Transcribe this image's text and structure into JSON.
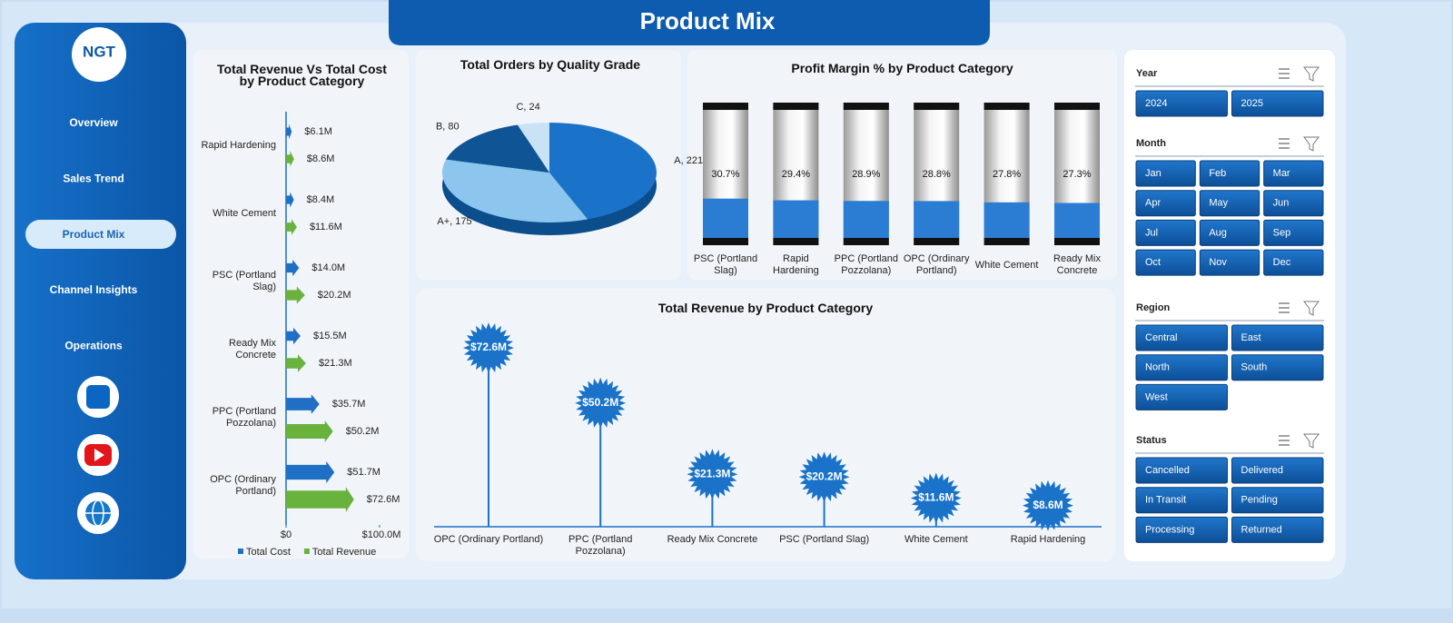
{
  "title": "Product Mix",
  "logo": "NGT",
  "nav": [
    "Overview",
    "Sales Trend",
    "Product Mix",
    "Channel Insights",
    "Operations"
  ],
  "chart_data": [
    {
      "type": "hbar",
      "title": "Total Revenue Vs Total Cost by Product Category",
      "categories": [
        "Rapid Hardening",
        "White Cement",
        "PSC (Portland Slag)",
        "Ready Mix Concrete",
        "PPC (Portland Pozzolana)",
        "OPC (Ordinary Portland)"
      ],
      "series": [
        {
          "name": "Total Cost",
          "color": "#1f6fc5",
          "values": [
            6.1,
            8.4,
            14.0,
            15.5,
            35.7,
            51.7
          ],
          "value_labels": [
            "$6.1M",
            "$8.4M",
            "$14.0M",
            "$15.5M",
            "$35.7M",
            "$51.7M"
          ]
        },
        {
          "name": "Total Revenue",
          "color": "#6ab23e",
          "values": [
            8.6,
            11.6,
            20.2,
            21.3,
            50.2,
            72.6
          ],
          "value_labels": [
            "$8.6M",
            "$11.6M",
            "$20.2M",
            "$21.3M",
            "$50.2M",
            "$72.6M"
          ]
        }
      ],
      "xlim": [
        0,
        100
      ],
      "xticks": [
        {
          "value": 0,
          "label": "$0"
        },
        {
          "value": 100,
          "label": "$100.0M"
        }
      ],
      "legend": "bottom"
    },
    {
      "type": "pie",
      "title": "Total Orders by Quality Grade",
      "values": [
        221,
        175,
        80,
        24
      ],
      "value_labels": [
        "A, 221",
        "A+, 175",
        "B, 80",
        "C, 24"
      ],
      "colors": [
        "#1b73c9",
        "#8cc6ef",
        "#0f5596",
        "#c9e2f6"
      ]
    },
    {
      "type": "cylinder",
      "title": "Profit Margin % by Product Category",
      "categories": [
        "PSC (Portland Slag)",
        "Rapid Hardening",
        "PPC (Portland Pozzolana)",
        "OPC (Ordinary Portland)",
        "White Cement",
        "Ready Mix Concrete"
      ],
      "values": [
        30.7,
        29.4,
        28.9,
        28.8,
        27.8,
        27.3
      ],
      "value_labels": [
        "30.7%",
        "29.4%",
        "28.9%",
        "28.8%",
        "27.8%",
        "27.3%"
      ],
      "ylim": [
        0,
        100
      ],
      "color": "#2b7dd4"
    },
    {
      "type": "lollipop",
      "title": "Total Revenue by Product Category",
      "categories": [
        "OPC (Ordinary Portland)",
        "PPC (Portland Pozzolana)",
        "Ready Mix Concrete",
        "PSC (Portland Slag)",
        "White Cement",
        "Rapid Hardening"
      ],
      "values": [
        72.6,
        50.2,
        21.3,
        20.2,
        11.6,
        8.6
      ],
      "value_labels": [
        "$72.6M",
        "$50.2M",
        "$21.3M",
        "$20.2M",
        "$11.6M",
        "$8.6M"
      ],
      "ylim": [
        0,
        80
      ],
      "color": "#1a73c9"
    }
  ],
  "slicers": [
    {
      "title": "Year",
      "items": [
        "2024",
        "2025"
      ]
    },
    {
      "title": "Month",
      "items": [
        "Jan",
        "Feb",
        "Mar",
        "Apr",
        "May",
        "Jun",
        "Jul",
        "Aug",
        "Sep",
        "Oct",
        "Nov",
        "Dec"
      ]
    },
    {
      "title": "Region",
      "items": [
        "Central",
        "East",
        "North",
        "South",
        "West"
      ]
    },
    {
      "title": "Status",
      "items": [
        "Cancelled",
        "Delivered",
        "In Transit",
        "Pending",
        "Processing",
        "Returned"
      ]
    }
  ]
}
